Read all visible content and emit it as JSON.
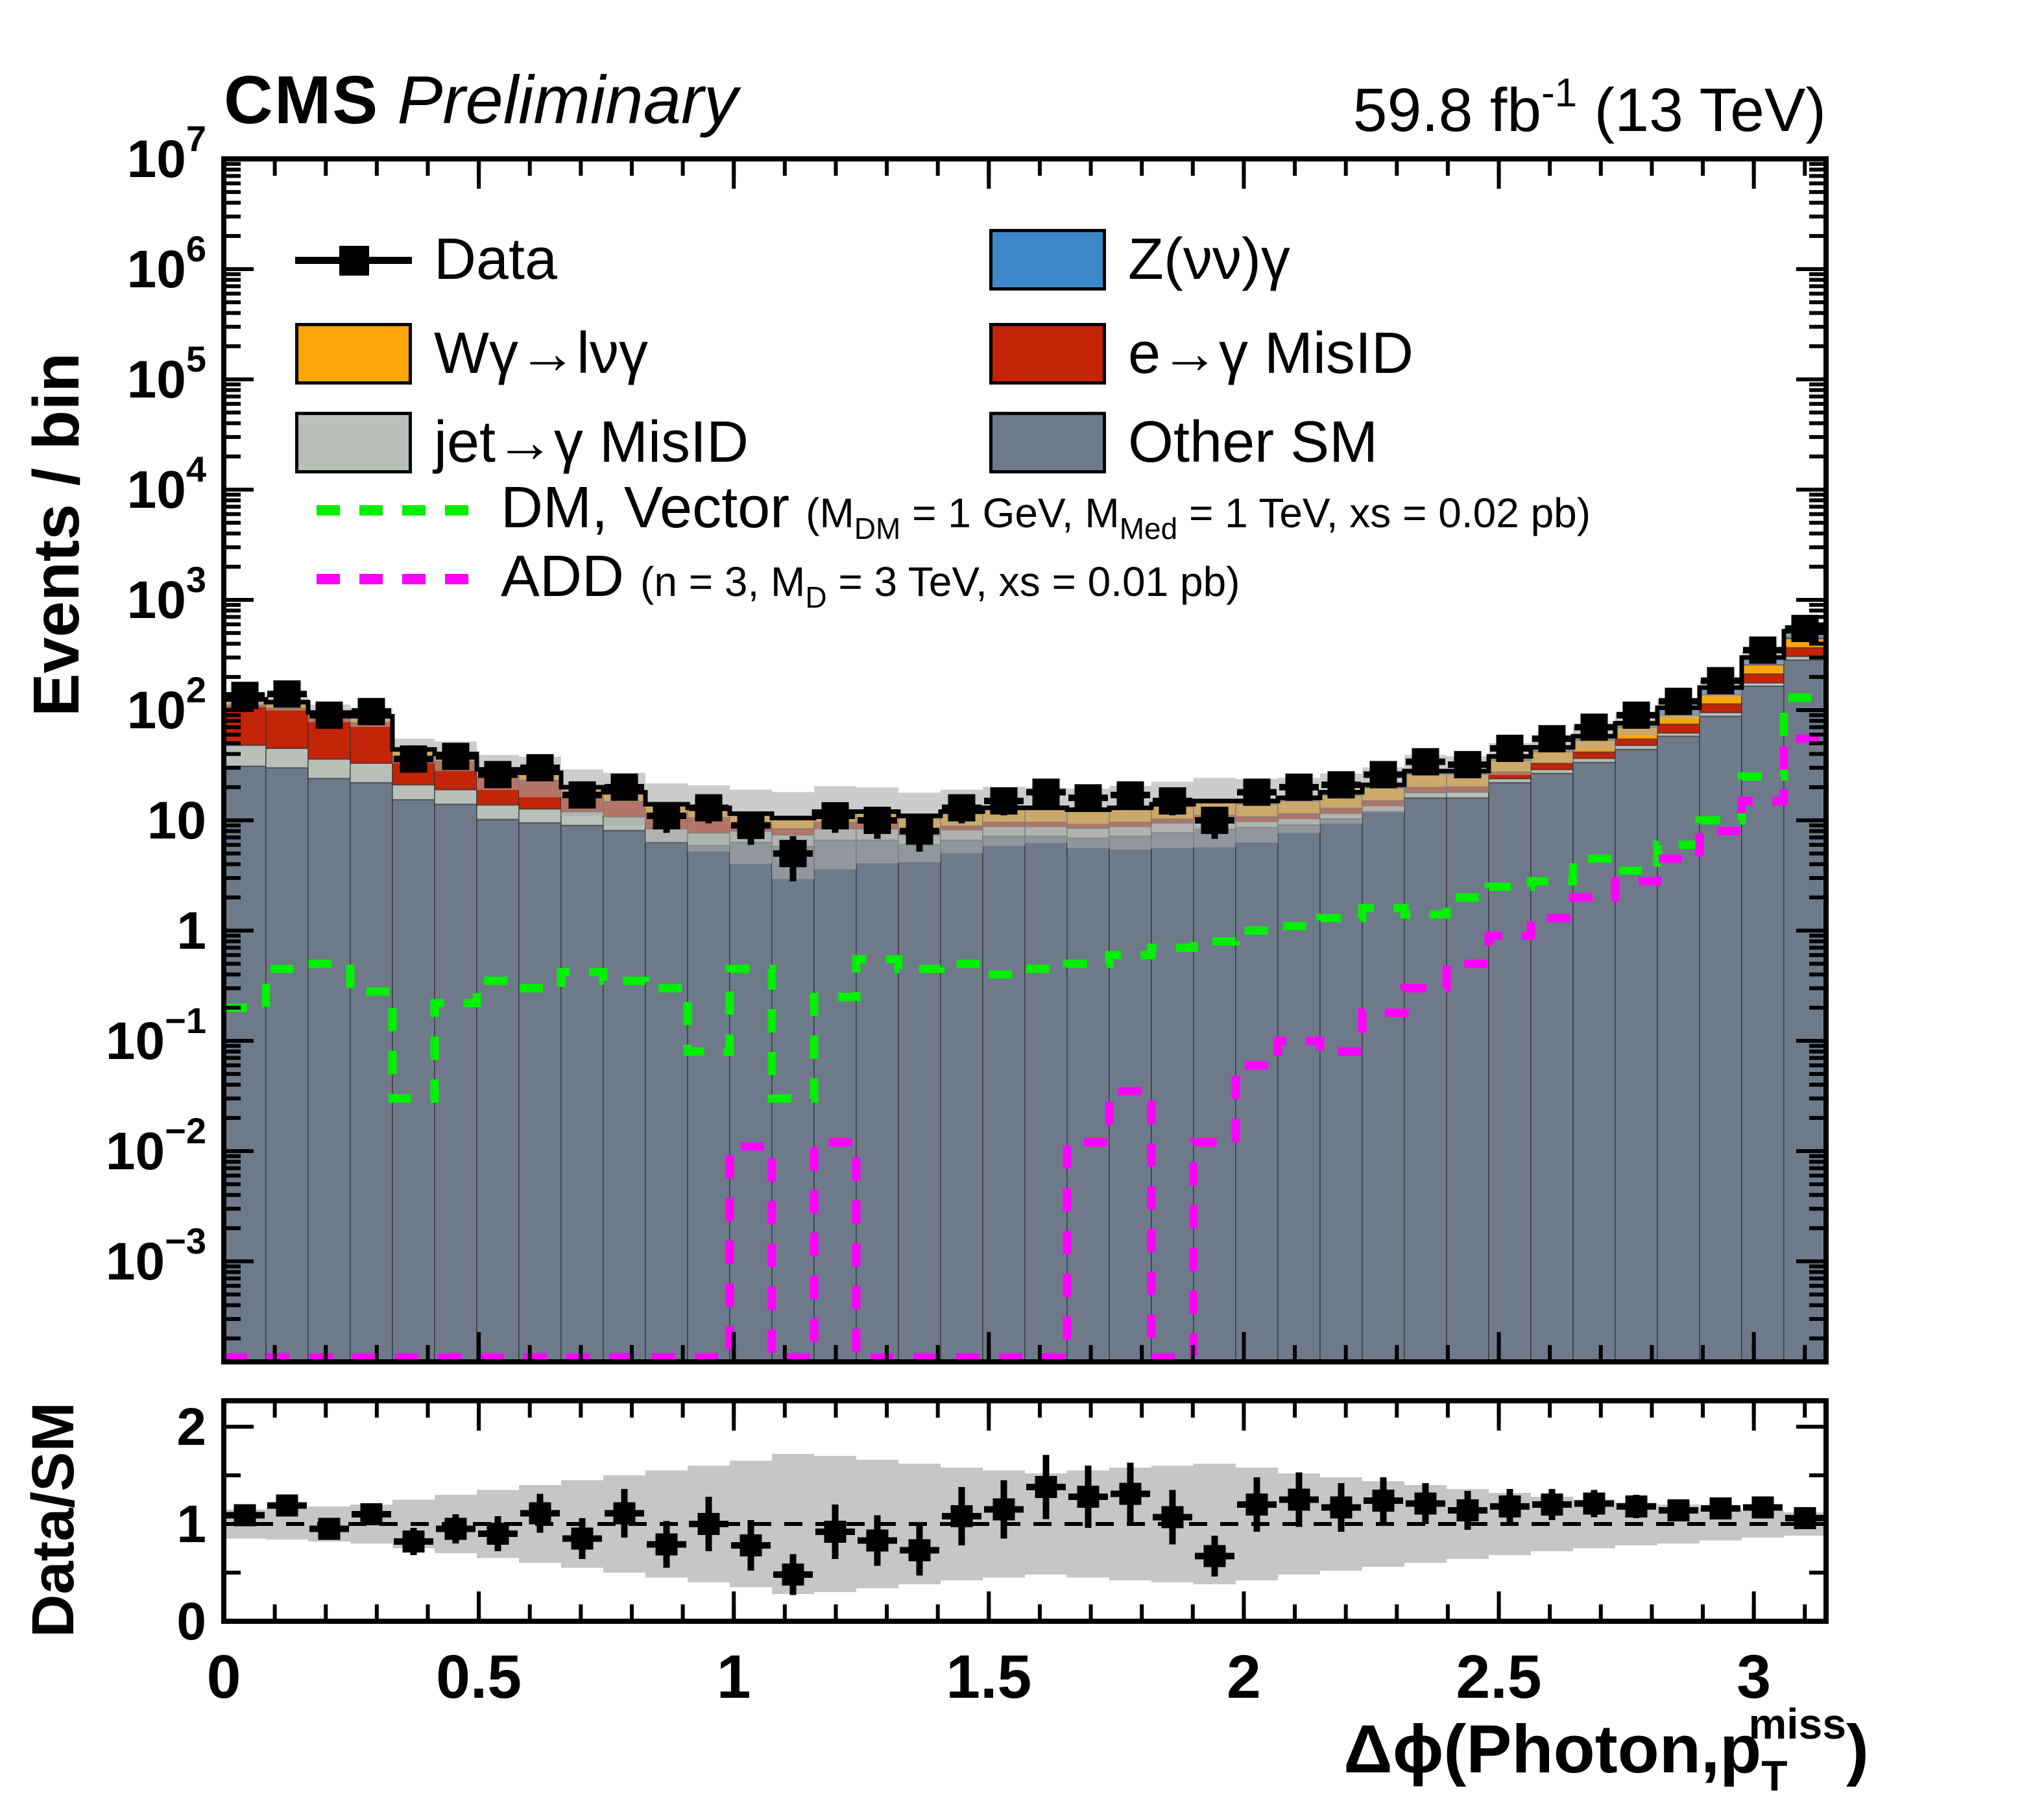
{
  "header": {
    "experiment": "CMS",
    "label": "Preliminary",
    "lumi_main": "59.8 fb",
    "lumi_sup": "-1",
    "lumi_tail": " (13 TeV)"
  },
  "axes": {
    "y_title": "Events / bin",
    "ratio_title": "Data/SM",
    "x_title_pre": "Δϕ(Photon,p",
    "x_title_sub": "T",
    "x_title_sup": "miss",
    "x_title_post": ")",
    "x_ticks": [
      {
        "v": 0.0,
        "label": "0"
      },
      {
        "v": 0.5,
        "label": "0.5"
      },
      {
        "v": 1.0,
        "label": "1"
      },
      {
        "v": 1.5,
        "label": "1.5"
      },
      {
        "v": 2.0,
        "label": "2"
      },
      {
        "v": 2.5,
        "label": "2.5"
      },
      {
        "v": 3.0,
        "label": "3"
      }
    ],
    "y_tick_exponents": [
      7,
      6,
      5,
      4,
      3,
      2,
      1,
      0,
      -1,
      -2,
      -3
    ],
    "ratio_ticks": [
      {
        "v": 0,
        "label": "0"
      },
      {
        "v": 1,
        "label": "1"
      },
      {
        "v": 2,
        "label": "2"
      }
    ]
  },
  "colors": {
    "z": "#3d87c8",
    "w": "#ffa60a",
    "e": "#c42407",
    "jet": "#b9c0ba",
    "other": "#6e7a8a",
    "dm": "#00f000",
    "add": "#ff00ff",
    "band": "rgba(170,170,170,0.6)",
    "ratio_band": "#c6c6c6",
    "data": "#000000"
  },
  "legend": {
    "data_label": "Data",
    "z_label": "Z(νν)γ",
    "w_label": "Wγ→lνγ",
    "e_label": "e→γ MisID",
    "jet_label": "jet→γ MisID",
    "other_label": "Other SM",
    "dm": {
      "name": "DM, Vector ",
      "parts": [
        {
          "t": "(M"
        },
        {
          "t": "DM",
          "sub": true
        },
        {
          "t": " = 1 GeV, M"
        },
        {
          "t": "Med",
          "sub": true
        },
        {
          "t": " = 1 TeV, xs = 0.02 pb)"
        }
      ]
    },
    "add": {
      "name": "ADD ",
      "parts": [
        {
          "t": "(n = 3, M"
        },
        {
          "t": "D",
          "sub": true
        },
        {
          "t": " = 3 TeV, xs = 0.01 pb)"
        }
      ]
    }
  },
  "chart_data": {
    "type": "bar",
    "subtype": "stacked-log-histogram-with-ratio",
    "title": "CMS Preliminary 59.8 fb-1 (13 TeV)",
    "xlabel": "dphi(Photon, pT miss)",
    "ylabel": "Events / bin",
    "x_range": [
      0,
      3.14159
    ],
    "n_bins": 38,
    "ylim": [
      0.000123,
      10000000
    ],
    "ratio_ylim": [
      0,
      2.27
    ],
    "grid": false,
    "legend_position": "top-inside",
    "series": [
      {
        "name": "Other SM",
        "color_key": "other",
        "values": [
          31,
          30,
          24,
          22,
          15.4,
          14,
          10.2,
          9.5,
          9,
          8.1,
          6.3,
          5.9,
          6.3,
          5.8,
          6.6,
          6.6,
          6,
          6.6,
          7.2,
          7.2,
          6.9,
          7.2,
          7.7,
          8.3,
          8.6,
          9.1,
          10.3,
          12,
          16,
          16,
          22,
          26.7,
          33.6,
          44.1,
          58,
          88,
          165,
          285
        ]
      },
      {
        "name": "jet→γ MisID",
        "color_key": "jet",
        "values": [
          17,
          15,
          12,
          11,
          5.6,
          5,
          3.6,
          3.2,
          3,
          2.7,
          2.1,
          1.8,
          1.7,
          1.6,
          1.8,
          1.8,
          1.4,
          1.6,
          1.6,
          1.6,
          1.6,
          1.6,
          1.8,
          1.9,
          1.2,
          1.3,
          1.3,
          1.6,
          1.9,
          2.1,
          1.9,
          2.2,
          2.9,
          3.8,
          4,
          7,
          12,
          22
        ]
      },
      {
        "name": "e→γ MisID",
        "color_key": "e",
        "values": [
          63,
          59,
          48,
          44,
          16.7,
          15.2,
          11,
          10.3,
          4.4,
          4,
          3.1,
          2.9,
          1.2,
          1,
          1.2,
          1.2,
          0.7,
          0.7,
          0.8,
          0.8,
          0.7,
          0.8,
          0.8,
          0.9,
          1,
          1.1,
          1.3,
          1.5,
          2,
          2,
          3.5,
          4.1,
          5.2,
          6.8,
          12.6,
          19,
          36,
          62
        ]
      },
      {
        "name": "Wγ→lνγ",
        "color_key": "w",
        "values": [
          12,
          12,
          9,
          9,
          5.3,
          4.8,
          3.6,
          3.4,
          3,
          2.7,
          2.1,
          2,
          2,
          1.8,
          2,
          2,
          2.4,
          2.6,
          2.9,
          2.9,
          2.8,
          2.9,
          3.1,
          3.3,
          3.3,
          3.5,
          4,
          4.6,
          6.4,
          6.2,
          7.6,
          9.2,
          11.6,
          15.2,
          15.7,
          24,
          45,
          78
        ]
      },
      {
        "name": "Z(νν)γ",
        "color_key": "z",
        "values": [
          2,
          2,
          2,
          2,
          1,
          1,
          0.6,
          0.6,
          0.6,
          0.5,
          0.4,
          0.4,
          0.3,
          0.3,
          0.4,
          0.4,
          0.5,
          0.5,
          0.5,
          0.5,
          0.5,
          0.5,
          0.6,
          0.6,
          0.9,
          1,
          1.1,
          1.3,
          1.7,
          1.7,
          3,
          3.8,
          4.7,
          6.1,
          14.7,
          22,
          42,
          73
        ]
      }
    ],
    "total_sm": [
      125,
      118,
      95,
      88,
      44,
      40,
      29,
      27,
      20,
      18,
      14,
      13,
      11.5,
      10.5,
      12,
      12,
      11,
      12,
      13,
      13,
      12.5,
      13,
      14,
      15,
      15,
      16,
      18,
      21,
      28,
      28,
      38,
      46,
      58,
      76,
      105,
      160,
      300,
      520
    ],
    "rel_unc": [
      0.15,
      0.16,
      0.18,
      0.2,
      0.25,
      0.3,
      0.35,
      0.4,
      0.45,
      0.5,
      0.55,
      0.6,
      0.65,
      0.72,
      0.7,
      0.66,
      0.62,
      0.58,
      0.55,
      0.52,
      0.55,
      0.58,
      0.6,
      0.62,
      0.58,
      0.52,
      0.48,
      0.44,
      0.4,
      0.36,
      0.32,
      0.28,
      0.25,
      0.22,
      0.2,
      0.17,
      0.14,
      0.12
    ],
    "data_points": {
      "values": [
        136,
        140,
        90,
        97,
        36,
        38,
        26,
        30,
        17,
        20,
        11,
        13,
        9,
        5,
        11,
        10,
        8,
        13,
        15,
        18,
        16,
        17,
        15,
        10,
        18,
        20,
        21,
        26,
        34,
        32,
        45,
        55,
        70,
        90,
        120,
        185,
        350,
        550
      ],
      "errors": [
        11.7,
        11.8,
        9.5,
        9.8,
        6,
        6.2,
        5.1,
        5.5,
        4.1,
        4.5,
        3.3,
        3.6,
        3,
        2.2,
        3.3,
        3.2,
        2.8,
        3.6,
        3.9,
        4.2,
        4,
        4.1,
        3.9,
        3.2,
        4.2,
        4.5,
        4.6,
        5.1,
        5.8,
        5.7,
        6.7,
        7.4,
        8.4,
        9.5,
        11,
        13.6,
        18.7,
        23.5
      ]
    },
    "signals": [
      {
        "name": "DM, Vector",
        "color_key": "dm",
        "values": [
          0.2,
          0.45,
          0.5,
          0.28,
          0.03,
          0.22,
          0.35,
          0.3,
          0.42,
          0.35,
          0.3,
          0.08,
          0.45,
          0.03,
          0.25,
          0.55,
          0.45,
          0.5,
          0.4,
          0.45,
          0.5,
          0.6,
          0.7,
          0.8,
          1.0,
          1.1,
          1.3,
          1.6,
          1.4,
          2.0,
          2.5,
          2.8,
          4.5,
          3.5,
          6.0,
          10,
          25,
          130
        ]
      },
      {
        "name": "ADD",
        "color_key": "add",
        "values": [
          null,
          null,
          null,
          null,
          null,
          null,
          null,
          null,
          null,
          null,
          null,
          null,
          0.011,
          null,
          0.012,
          null,
          null,
          null,
          null,
          null,
          0.012,
          0.035,
          null,
          0.012,
          0.06,
          0.1,
          0.08,
          0.18,
          0.3,
          0.5,
          0.9,
          1.3,
          2.0,
          2.8,
          4.5,
          8,
          15,
          55
        ]
      }
    ],
    "ratio": {
      "values": [
        1.09,
        1.19,
        0.95,
        1.1,
        0.82,
        0.95,
        0.9,
        1.11,
        0.85,
        1.11,
        0.79,
        1.0,
        0.78,
        0.48,
        0.92,
        0.83,
        0.73,
        1.08,
        1.15,
        1.38,
        1.28,
        1.31,
        1.07,
        0.67,
        1.2,
        1.25,
        1.17,
        1.24,
        1.21,
        1.14,
        1.18,
        1.2,
        1.21,
        1.18,
        1.14,
        1.16,
        1.17,
        1.06
      ],
      "errors": [
        0.09,
        0.1,
        0.1,
        0.11,
        0.14,
        0.15,
        0.18,
        0.2,
        0.21,
        0.25,
        0.24,
        0.28,
        0.26,
        0.21,
        0.28,
        0.26,
        0.26,
        0.3,
        0.3,
        0.33,
        0.32,
        0.32,
        0.28,
        0.21,
        0.28,
        0.28,
        0.25,
        0.24,
        0.21,
        0.2,
        0.18,
        0.16,
        0.14,
        0.12,
        0.1,
        0.09,
        0.06,
        0.05
      ],
      "reference": 1
    }
  }
}
